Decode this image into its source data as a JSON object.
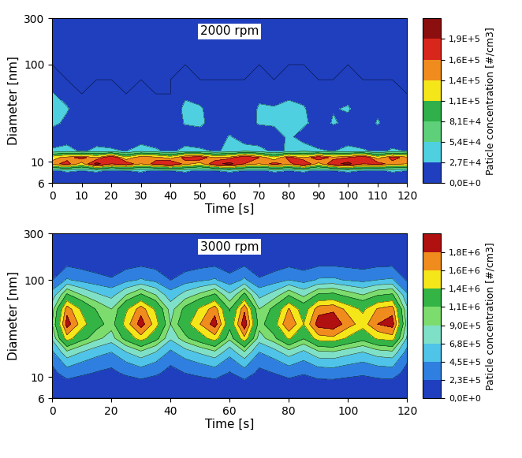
{
  "chart_data": [
    {
      "type": "contour",
      "annotation": "2000 rpm",
      "x_label": "Time [s]",
      "y_label": "Diameter [nm]",
      "log": "y",
      "x": [
        0,
        5,
        10,
        15,
        20,
        25,
        30,
        35,
        40,
        45,
        50,
        55,
        60,
        65,
        70,
        75,
        80,
        85,
        90,
        95,
        100,
        105,
        110,
        115,
        120
      ],
      "y": [
        6,
        8,
        9.5,
        11,
        13,
        18,
        25,
        35,
        50,
        70,
        100,
        150,
        300
      ],
      "cells": [
        [
          0,
          0,
          0,
          0,
          0,
          0,
          0,
          0,
          0,
          0,
          0,
          0,
          0,
          0,
          0,
          0,
          0,
          0,
          0,
          0,
          0,
          0,
          0,
          0,
          0
        ],
        [
          20000,
          30000,
          25000,
          30000,
          20000,
          25000,
          30000,
          20000,
          25000,
          30000,
          20000,
          25000,
          30000,
          25000,
          20000,
          30000,
          25000,
          30000,
          20000,
          25000,
          30000,
          25000,
          20000,
          30000,
          25000
        ],
        [
          150000,
          170000,
          130000,
          200000,
          160000,
          180000,
          140000,
          170000,
          190000,
          150000,
          130000,
          180000,
          200000,
          160000,
          140000,
          170000,
          150000,
          190000,
          130000,
          180000,
          200000,
          160000,
          170000,
          150000,
          140000
        ],
        [
          130000,
          150000,
          170000,
          140000,
          190000,
          120000,
          160000,
          150000,
          130000,
          170000,
          180000,
          140000,
          150000,
          190000,
          160000,
          120000,
          170000,
          140000,
          180000,
          150000,
          160000,
          190000,
          130000,
          170000,
          150000
        ],
        [
          30000,
          40000,
          20000,
          35000,
          30000,
          25000,
          40000,
          30000,
          20000,
          35000,
          30000,
          25000,
          30000,
          40000,
          35000,
          20000,
          30000,
          45000,
          30000,
          25000,
          35000,
          30000,
          20000,
          30000,
          25000
        ],
        [
          10000,
          5000,
          8000,
          5000,
          10000,
          5000,
          8000,
          10000,
          5000,
          8000,
          10000,
          5000,
          30000,
          10000,
          8000,
          5000,
          35000,
          10000,
          5000,
          8000,
          10000,
          5000,
          8000,
          10000,
          5000
        ],
        [
          35000,
          20000,
          5000,
          5000,
          15000,
          5000,
          20000,
          5000,
          5000,
          30000,
          35000,
          10000,
          5000,
          15000,
          30000,
          35000,
          40000,
          35000,
          10000,
          30000,
          20000,
          5000,
          30000,
          10000,
          5000
        ],
        [
          40000,
          30000,
          5000,
          10000,
          20000,
          5000,
          10000,
          5000,
          5000,
          35000,
          30000,
          15000,
          10000,
          10000,
          30000,
          30000,
          35000,
          30000,
          10000,
          25000,
          30000,
          10000,
          20000,
          15000,
          5000
        ],
        [
          30000,
          10000,
          0,
          5000,
          10000,
          0,
          5000,
          0,
          0,
          20000,
          15000,
          5000,
          5000,
          5000,
          20000,
          10000,
          20000,
          15000,
          5000,
          10000,
          15000,
          5000,
          10000,
          5000,
          0
        ],
        [
          5000,
          0,
          0,
          0,
          0,
          0,
          0,
          0,
          0,
          5000,
          0,
          0,
          0,
          0,
          5000,
          0,
          5000,
          5000,
          0,
          0,
          5000,
          0,
          0,
          0,
          0
        ],
        [
          0,
          0,
          0,
          0,
          0,
          0,
          0,
          0,
          0,
          0,
          0,
          0,
          0,
          0,
          0,
          0,
          0,
          0,
          0,
          0,
          0,
          0,
          0,
          0,
          0
        ],
        [
          0,
          0,
          0,
          0,
          0,
          0,
          0,
          0,
          0,
          0,
          0,
          0,
          0,
          0,
          0,
          0,
          0,
          0,
          0,
          0,
          0,
          0,
          0,
          0,
          0
        ],
        [
          0,
          0,
          0,
          0,
          0,
          0,
          0,
          0,
          0,
          0,
          0,
          0,
          0,
          0,
          0,
          0,
          0,
          0,
          0,
          0,
          0,
          0,
          0,
          0,
          0
        ]
      ],
      "xlim": [
        0,
        120
      ],
      "xticks": [
        0,
        10,
        20,
        30,
        40,
        50,
        60,
        70,
        80,
        90,
        100,
        110,
        120
      ],
      "ylim": [
        6,
        300
      ],
      "yticks": [
        6,
        10,
        100,
        300
      ],
      "colorbar": {
        "label": "Paticle concentration [#/cm3]",
        "range": [
          0,
          216000
        ],
        "ticks": [
          {
            "value": 0,
            "label": "0,0E+0"
          },
          {
            "value": 27000,
            "label": "2,7E+4"
          },
          {
            "value": 54000,
            "label": "5,4E+4"
          },
          {
            "value": 81000,
            "label": "8,1E+4"
          },
          {
            "value": 110000,
            "label": "1,1E+5"
          },
          {
            "value": 140000,
            "label": "1,4E+5"
          },
          {
            "value": 160000,
            "label": "1,6E+5"
          },
          {
            "value": 190000,
            "label": "1,9E+5"
          }
        ],
        "colors": [
          "#1f3fbf",
          "#4fd0e0",
          "#5fd07a",
          "#2fb04a",
          "#f5e61a",
          "#f08c1e",
          "#d9261c",
          "#8b0f0f"
        ]
      }
    },
    {
      "type": "contour",
      "annotation": "3000 rpm",
      "x_label": "Time [s]",
      "y_label": "Diameter [nm]",
      "log": "y",
      "x": [
        0,
        5,
        10,
        15,
        20,
        25,
        30,
        35,
        40,
        45,
        50,
        55,
        60,
        65,
        70,
        75,
        80,
        85,
        90,
        95,
        100,
        105,
        110,
        115,
        120
      ],
      "y": [
        6,
        8,
        9.5,
        11,
        13,
        18,
        25,
        35,
        50,
        70,
        100,
        150,
        300
      ],
      "cells": [
        [
          0,
          0,
          0,
          0,
          0,
          0,
          0,
          0,
          0,
          0,
          0,
          0,
          0,
          0,
          0,
          0,
          0,
          0,
          0,
          0,
          0,
          0,
          0,
          0,
          0
        ],
        [
          45000,
          95000,
          75000,
          60000,
          50000,
          75000,
          95000,
          75000,
          45000,
          65000,
          80000,
          95000,
          60000,
          98000,
          50000,
          65000,
          90000,
          70000,
          95000,
          98000,
          85000,
          75000,
          90000,
          95000,
          40000
        ],
        [
          108000,
          228000,
          180000,
          144000,
          120000,
          180000,
          228000,
          180000,
          108000,
          156000,
          192000,
          228000,
          144000,
          234000,
          120000,
          156000,
          216000,
          168000,
          228000,
          234000,
          204000,
          180000,
          216000,
          228000,
          96000
        ],
        [
          162000,
          342000,
          270000,
          216000,
          180000,
          270000,
          342000,
          270000,
          162000,
          234000,
          288000,
          342000,
          216000,
          351000,
          180000,
          234000,
          324000,
          252000,
          342000,
          351000,
          306000,
          270000,
          324000,
          342000,
          144000
        ],
        [
          225000,
          475000,
          375000,
          300000,
          250000,
          375000,
          475000,
          375000,
          225000,
          325000,
          400000,
          475000,
          300000,
          488000,
          250000,
          325000,
          450000,
          350000,
          475000,
          488000,
          425000,
          375000,
          450000,
          475000,
          200000
        ],
        [
          405000,
          855000,
          675000,
          540000,
          450000,
          675000,
          855000,
          675000,
          405000,
          585000,
          720000,
          855000,
          540000,
          878000,
          450000,
          585000,
          810000,
          630000,
          855000,
          878000,
          765000,
          675000,
          810000,
          855000,
          360000
        ],
        [
          720000,
          1520000,
          1200000,
          960000,
          800000,
          1200000,
          1520000,
          1200000,
          720000,
          1040000,
          1280000,
          1520000,
          960000,
          1560000,
          800000,
          1040000,
          1440000,
          1120000,
          1520000,
          1560000,
          1360000,
          1200000,
          1440000,
          1520000,
          640000
        ],
        [
          900000,
          1900000,
          1500000,
          1200000,
          1000000,
          1500000,
          1900000,
          1500000,
          900000,
          1300000,
          1600000,
          1900000,
          1200000,
          1950000,
          1000000,
          1300000,
          1800000,
          1400000,
          1900000,
          1950000,
          1700000,
          1500000,
          1800000,
          1900000,
          800000
        ],
        [
          810000,
          1710000,
          1350000,
          1080000,
          900000,
          1350000,
          1710000,
          1350000,
          810000,
          1170000,
          1440000,
          1710000,
          1080000,
          1755000,
          900000,
          1170000,
          1620000,
          1260000,
          1710000,
          1755000,
          1530000,
          1350000,
          1620000,
          1710000,
          720000
        ],
        [
          540000,
          1140000,
          900000,
          720000,
          600000,
          900000,
          1140000,
          900000,
          540000,
          780000,
          960000,
          1140000,
          720000,
          1170000,
          600000,
          780000,
          1080000,
          840000,
          1140000,
          1170000,
          1020000,
          900000,
          1080000,
          1140000,
          480000
        ],
        [
          225000,
          475000,
          375000,
          300000,
          250000,
          375000,
          475000,
          375000,
          225000,
          325000,
          400000,
          475000,
          300000,
          488000,
          250000,
          325000,
          450000,
          350000,
          475000,
          488000,
          425000,
          375000,
          450000,
          475000,
          200000
        ],
        [
          72000,
          152000,
          120000,
          96000,
          80000,
          120000,
          152000,
          120000,
          72000,
          104000,
          128000,
          152000,
          96000,
          156000,
          80000,
          104000,
          144000,
          112000,
          152000,
          156000,
          136000,
          120000,
          144000,
          152000,
          64000
        ],
        [
          0,
          0,
          0,
          0,
          0,
          0,
          0,
          0,
          0,
          0,
          0,
          0,
          0,
          0,
          0,
          0,
          0,
          0,
          0,
          0,
          0,
          0,
          0,
          0,
          0
        ]
      ],
      "xlim": [
        0,
        120
      ],
      "xticks": [
        0,
        20,
        40,
        60,
        80,
        100,
        120
      ],
      "ylim": [
        6,
        300
      ],
      "yticks": [
        6,
        10,
        100,
        300
      ],
      "colorbar": {
        "label": "Paticle concentration [#/cm3]",
        "range": [
          0,
          2000000
        ],
        "ticks": [
          {
            "value": 0,
            "label": "0,0E+0"
          },
          {
            "value": 230000,
            "label": "2,3E+5"
          },
          {
            "value": 450000,
            "label": "4,5E+5"
          },
          {
            "value": 680000,
            "label": "6,8E+5"
          },
          {
            "value": 900000,
            "label": "9,0E+5"
          },
          {
            "value": 1100000,
            "label": "1,1E+6"
          },
          {
            "value": 1400000,
            "label": "1,4E+6"
          },
          {
            "value": 1600000,
            "label": "1,6E+6"
          },
          {
            "value": 1800000,
            "label": "1,8E+6"
          }
        ],
        "colors": [
          "#1f3fbf",
          "#2f7fe0",
          "#4fc3e8",
          "#7fe0c8",
          "#7ddc6e",
          "#33b445",
          "#f5e61a",
          "#f08c1e",
          "#b01010"
        ]
      }
    }
  ]
}
